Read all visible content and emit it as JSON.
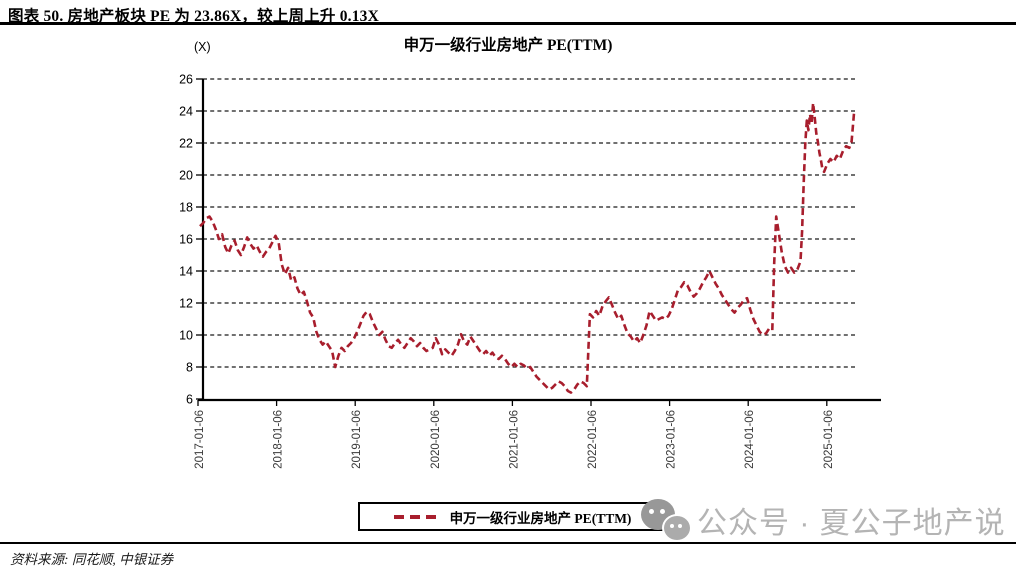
{
  "header": {
    "title": "图表 50. 房地产板块 PE 为 23.86X，较上周上升 0.13X"
  },
  "chart": {
    "unit_label": "(X)",
    "title": "申万一级行业房地产 PE(TTM)",
    "legend_label": "申万一级行业房地产 PE(TTM)"
  },
  "chart_data": {
    "type": "line",
    "title": "申万一级行业房地产 PE(TTM)",
    "unit": "X",
    "latest_value": 23.86,
    "weekly_change": 0.13,
    "ylim": [
      6,
      26
    ],
    "y_ticks": [
      6,
      8,
      10,
      12,
      14,
      16,
      18,
      20,
      22,
      24,
      26
    ],
    "x_tick_labels": [
      "2017-01-06",
      "2018-01-06",
      "2019-01-06",
      "2020-01-06",
      "2021-01-06",
      "2022-01-06",
      "2023-01-06",
      "2024-01-06",
      "2025-01-06"
    ],
    "grid": "horizontal-dashed",
    "grid_color": "#1a1a1a",
    "axis_color": "#000000",
    "legend_position": "bottom",
    "line_style": "dashed",
    "series": [
      {
        "name": "申万一级行业房地产 PE(TTM)",
        "color": "#A81E2D",
        "points": [
          [
            2017.04,
            16.8
          ],
          [
            2017.08,
            17.0
          ],
          [
            2017.12,
            17.3
          ],
          [
            2017.16,
            17.4
          ],
          [
            2017.2,
            17.1
          ],
          [
            2017.24,
            16.6
          ],
          [
            2017.28,
            16.0
          ],
          [
            2017.32,
            16.3
          ],
          [
            2017.36,
            15.5
          ],
          [
            2017.4,
            15.1
          ],
          [
            2017.44,
            15.6
          ],
          [
            2017.48,
            15.9
          ],
          [
            2017.52,
            15.3
          ],
          [
            2017.56,
            15.0
          ],
          [
            2017.6,
            15.5
          ],
          [
            2017.64,
            16.1
          ],
          [
            2017.68,
            15.7
          ],
          [
            2017.72,
            15.4
          ],
          [
            2017.76,
            15.6
          ],
          [
            2017.8,
            15.2
          ],
          [
            2017.84,
            14.9
          ],
          [
            2017.88,
            15.2
          ],
          [
            2017.92,
            15.4
          ],
          [
            2017.96,
            15.8
          ],
          [
            2018.0,
            16.2
          ],
          [
            2018.04,
            15.8
          ],
          [
            2018.08,
            14.4
          ],
          [
            2018.12,
            13.8
          ],
          [
            2018.16,
            14.2
          ],
          [
            2018.2,
            13.4
          ],
          [
            2018.24,
            13.6
          ],
          [
            2018.28,
            12.9
          ],
          [
            2018.32,
            12.5
          ],
          [
            2018.36,
            12.7
          ],
          [
            2018.4,
            12.1
          ],
          [
            2018.44,
            11.4
          ],
          [
            2018.48,
            11.1
          ],
          [
            2018.52,
            10.2
          ],
          [
            2018.56,
            9.7
          ],
          [
            2018.6,
            9.4
          ],
          [
            2018.64,
            9.6
          ],
          [
            2018.68,
            9.3
          ],
          [
            2018.72,
            9.0
          ],
          [
            2018.76,
            8.0
          ],
          [
            2018.8,
            8.7
          ],
          [
            2018.84,
            9.2
          ],
          [
            2018.88,
            9.0
          ],
          [
            2018.92,
            9.3
          ],
          [
            2018.96,
            9.5
          ],
          [
            2019.0,
            9.8
          ],
          [
            2019.04,
            10.2
          ],
          [
            2019.08,
            10.7
          ],
          [
            2019.12,
            11.2
          ],
          [
            2019.16,
            11.45
          ],
          [
            2019.2,
            11.3
          ],
          [
            2019.24,
            10.8
          ],
          [
            2019.28,
            10.4
          ],
          [
            2019.32,
            10.0
          ],
          [
            2019.36,
            10.2
          ],
          [
            2019.4,
            9.7
          ],
          [
            2019.44,
            9.3
          ],
          [
            2019.48,
            9.2
          ],
          [
            2019.52,
            9.5
          ],
          [
            2019.56,
            9.7
          ],
          [
            2019.6,
            9.4
          ],
          [
            2019.64,
            9.2
          ],
          [
            2019.68,
            9.5
          ],
          [
            2019.72,
            9.8
          ],
          [
            2019.76,
            9.6
          ],
          [
            2019.8,
            9.3
          ],
          [
            2019.84,
            9.5
          ],
          [
            2019.88,
            9.2
          ],
          [
            2019.92,
            9.0
          ],
          [
            2019.96,
            9.1
          ],
          [
            2020.0,
            9.2
          ],
          [
            2020.04,
            9.8
          ],
          [
            2020.08,
            9.4
          ],
          [
            2020.12,
            8.8
          ],
          [
            2020.16,
            9.1
          ],
          [
            2020.2,
            8.9
          ],
          [
            2020.24,
            8.7
          ],
          [
            2020.28,
            9.0
          ],
          [
            2020.32,
            9.4
          ],
          [
            2020.36,
            10.05
          ],
          [
            2020.4,
            9.6
          ],
          [
            2020.44,
            9.4
          ],
          [
            2020.48,
            9.9
          ],
          [
            2020.52,
            9.6
          ],
          [
            2020.56,
            9.3
          ],
          [
            2020.6,
            9.0
          ],
          [
            2020.64,
            8.8
          ],
          [
            2020.68,
            9.0
          ],
          [
            2020.72,
            8.7
          ],
          [
            2020.76,
            8.9
          ],
          [
            2020.8,
            8.6
          ],
          [
            2020.84,
            8.5
          ],
          [
            2020.88,
            8.7
          ],
          [
            2020.92,
            8.5
          ],
          [
            2020.96,
            8.2
          ],
          [
            2021.0,
            8.0
          ],
          [
            2021.04,
            8.2
          ],
          [
            2021.08,
            8.0
          ],
          [
            2021.12,
            8.2
          ],
          [
            2021.16,
            8.1
          ],
          [
            2021.2,
            7.9
          ],
          [
            2021.24,
            8.0
          ],
          [
            2021.28,
            7.7
          ],
          [
            2021.32,
            7.4
          ],
          [
            2021.36,
            7.2
          ],
          [
            2021.4,
            7.0
          ],
          [
            2021.44,
            6.8
          ],
          [
            2021.48,
            6.6
          ],
          [
            2021.52,
            6.7
          ],
          [
            2021.56,
            6.9
          ],
          [
            2021.6,
            7.1
          ],
          [
            2021.64,
            7.0
          ],
          [
            2021.68,
            6.8
          ],
          [
            2021.72,
            6.5
          ],
          [
            2021.76,
            6.4
          ],
          [
            2021.8,
            6.6
          ],
          [
            2021.84,
            6.9
          ],
          [
            2021.88,
            7.1
          ],
          [
            2021.92,
            7.0
          ],
          [
            2021.96,
            6.8
          ],
          [
            2022.0,
            11.3
          ],
          [
            2022.04,
            11.1
          ],
          [
            2022.08,
            11.5
          ],
          [
            2022.12,
            11.2
          ],
          [
            2022.16,
            11.8
          ],
          [
            2022.2,
            12.1
          ],
          [
            2022.24,
            12.35
          ],
          [
            2022.28,
            11.9
          ],
          [
            2022.32,
            11.4
          ],
          [
            2022.36,
            11.0
          ],
          [
            2022.4,
            11.2
          ],
          [
            2022.44,
            10.6
          ],
          [
            2022.48,
            10.1
          ],
          [
            2022.52,
            9.9
          ],
          [
            2022.56,
            9.6
          ],
          [
            2022.6,
            9.8
          ],
          [
            2022.64,
            9.5
          ],
          [
            2022.68,
            10.0
          ],
          [
            2022.72,
            10.6
          ],
          [
            2022.76,
            11.5
          ],
          [
            2022.8,
            11.2
          ],
          [
            2022.84,
            10.9
          ],
          [
            2022.88,
            11.0
          ],
          [
            2022.92,
            11.1
          ],
          [
            2022.96,
            11.0
          ],
          [
            2023.0,
            11.2
          ],
          [
            2023.04,
            11.6
          ],
          [
            2023.08,
            12.2
          ],
          [
            2023.12,
            12.8
          ],
          [
            2023.16,
            13.0
          ],
          [
            2023.2,
            13.3
          ],
          [
            2023.24,
            13.1
          ],
          [
            2023.28,
            12.7
          ],
          [
            2023.32,
            12.4
          ],
          [
            2023.36,
            12.6
          ],
          [
            2023.4,
            12.9
          ],
          [
            2023.44,
            13.3
          ],
          [
            2023.48,
            13.6
          ],
          [
            2023.52,
            14.0
          ],
          [
            2023.56,
            13.6
          ],
          [
            2023.6,
            13.2
          ],
          [
            2023.64,
            12.9
          ],
          [
            2023.68,
            12.5
          ],
          [
            2023.72,
            12.2
          ],
          [
            2023.76,
            11.9
          ],
          [
            2023.8,
            11.6
          ],
          [
            2023.84,
            11.4
          ],
          [
            2023.88,
            11.7
          ],
          [
            2023.92,
            11.9
          ],
          [
            2023.96,
            12.2
          ],
          [
            2024.0,
            12.3
          ],
          [
            2024.04,
            11.6
          ],
          [
            2024.08,
            11.0
          ],
          [
            2024.12,
            10.6
          ],
          [
            2024.16,
            10.2
          ],
          [
            2024.2,
            10.0
          ],
          [
            2024.24,
            10.1
          ],
          [
            2024.28,
            10.4
          ],
          [
            2024.32,
            10.3
          ],
          [
            2024.345,
            14.5
          ],
          [
            2024.37,
            17.4
          ],
          [
            2024.4,
            16.5
          ],
          [
            2024.44,
            15.2
          ],
          [
            2024.48,
            14.3
          ],
          [
            2024.52,
            13.9
          ],
          [
            2024.56,
            14.2
          ],
          [
            2024.6,
            13.9
          ],
          [
            2024.64,
            14.1
          ],
          [
            2024.68,
            14.6
          ],
          [
            2024.7,
            16.5
          ],
          [
            2024.72,
            19.5
          ],
          [
            2024.74,
            22.0
          ],
          [
            2024.76,
            23.4
          ],
          [
            2024.78,
            22.8
          ],
          [
            2024.8,
            23.8
          ],
          [
            2024.82,
            23.2
          ],
          [
            2024.84,
            24.5
          ],
          [
            2024.86,
            23.6
          ],
          [
            2024.88,
            22.6
          ],
          [
            2024.9,
            22.1
          ],
          [
            2024.92,
            21.4
          ],
          [
            2024.94,
            20.9
          ],
          [
            2024.96,
            20.3
          ],
          [
            2024.98,
            20.2
          ],
          [
            2025.02,
            20.7
          ],
          [
            2025.06,
            21.0
          ],
          [
            2025.1,
            20.8
          ],
          [
            2025.14,
            21.2
          ],
          [
            2025.18,
            21.0
          ],
          [
            2025.22,
            21.5
          ],
          [
            2025.26,
            21.8
          ],
          [
            2025.3,
            21.7
          ],
          [
            2025.33,
            22.1
          ],
          [
            2025.36,
            23.86
          ]
        ]
      }
    ]
  },
  "watermark": {
    "icon": "wechat-icon",
    "text": "公众号 · 夏公子地产说"
  },
  "footer": {
    "source": "资料来源: 同花顺, 中银证券"
  }
}
